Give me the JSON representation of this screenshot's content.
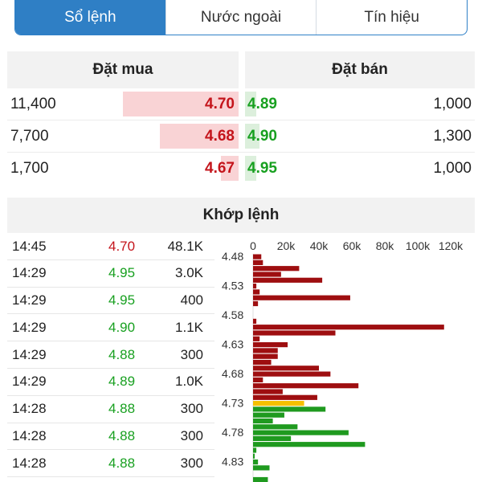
{
  "tabs": [
    {
      "label": "Sổ lệnh",
      "active": true
    },
    {
      "label": "Nước ngoài",
      "active": false
    },
    {
      "label": "Tín hiệu",
      "active": false
    }
  ],
  "order_book": {
    "buy_header": "Đặt mua",
    "sell_header": "Đặt bán",
    "rows": [
      {
        "bid_volume": "11,400",
        "bid_price": "4.70",
        "ask_price": "4.89",
        "ask_volume": "1,000"
      },
      {
        "bid_volume": "7,700",
        "bid_price": "4.68",
        "ask_price": "4.90",
        "ask_volume": "1,300"
      },
      {
        "bid_volume": "1,700",
        "bid_price": "4.67",
        "ask_price": "4.95",
        "ask_volume": "1,000"
      }
    ]
  },
  "matched": {
    "header": "Khớp lệnh",
    "trades": [
      {
        "time": "14:45",
        "price": "4.70",
        "volume": "48.1K",
        "side": "down"
      },
      {
        "time": "14:29",
        "price": "4.95",
        "volume": "3.0K",
        "side": "up"
      },
      {
        "time": "14:29",
        "price": "4.95",
        "volume": "400",
        "side": "up"
      },
      {
        "time": "14:29",
        "price": "4.90",
        "volume": "1.1K",
        "side": "up"
      },
      {
        "time": "14:29",
        "price": "4.88",
        "volume": "300",
        "side": "up"
      },
      {
        "time": "14:29",
        "price": "4.89",
        "volume": "1.0K",
        "side": "up"
      },
      {
        "time": "14:28",
        "price": "4.88",
        "volume": "300",
        "side": "up"
      },
      {
        "time": "14:28",
        "price": "4.88",
        "volume": "300",
        "side": "up"
      },
      {
        "time": "14:28",
        "price": "4.88",
        "volume": "300",
        "side": "up"
      }
    ]
  },
  "colors": {
    "down": "#c4141b",
    "up": "#18a020",
    "reference": "#f5c000",
    "bar_down": "#9e0e10",
    "bar_up": "#1f9a1f"
  },
  "chart_data": {
    "type": "bar",
    "orientation": "horizontal",
    "xlim": [
      0,
      125000
    ],
    "x_ticks": [
      "0",
      "20k",
      "40k",
      "60k",
      "80k",
      "100k",
      "120k"
    ],
    "y_ticks": [
      "4.48",
      "4.53",
      "4.58",
      "4.63",
      "4.68",
      "4.73",
      "4.78",
      "4.83"
    ],
    "categories": [
      "4.48",
      "4.49",
      "4.50",
      "4.51",
      "4.52",
      "4.53",
      "4.54",
      "4.55",
      "4.56",
      "4.57",
      "4.58",
      "4.59",
      "4.60",
      "4.61",
      "4.62",
      "4.63",
      "4.64",
      "4.65",
      "4.66",
      "4.67",
      "4.68",
      "4.69",
      "4.70",
      "4.71",
      "4.72",
      "4.73",
      "4.74",
      "4.75",
      "4.76",
      "4.77",
      "4.78",
      "4.79",
      "4.80",
      "4.81",
      "4.82",
      "4.83",
      "4.84",
      "4.85",
      "4.86"
    ],
    "values": [
      5000,
      6000,
      28000,
      17000,
      42000,
      2000,
      4000,
      59000,
      3000,
      0,
      0,
      2000,
      116000,
      50000,
      4000,
      21000,
      15000,
      15000,
      11000,
      40000,
      47000,
      6000,
      64000,
      18000,
      39000,
      31000,
      44000,
      19000,
      12000,
      27000,
      58000,
      23000,
      68000,
      2000,
      1000,
      3000,
      10000,
      0,
      9000
    ],
    "bar_colors": [
      "down",
      "down",
      "down",
      "down",
      "down",
      "down",
      "down",
      "down",
      "down",
      "down",
      "down",
      "down",
      "down",
      "down",
      "down",
      "down",
      "down",
      "down",
      "down",
      "down",
      "down",
      "down",
      "down",
      "down",
      "down",
      "reference",
      "up",
      "up",
      "up",
      "up",
      "up",
      "up",
      "up",
      "up",
      "up",
      "up",
      "up",
      "up",
      "up"
    ]
  }
}
